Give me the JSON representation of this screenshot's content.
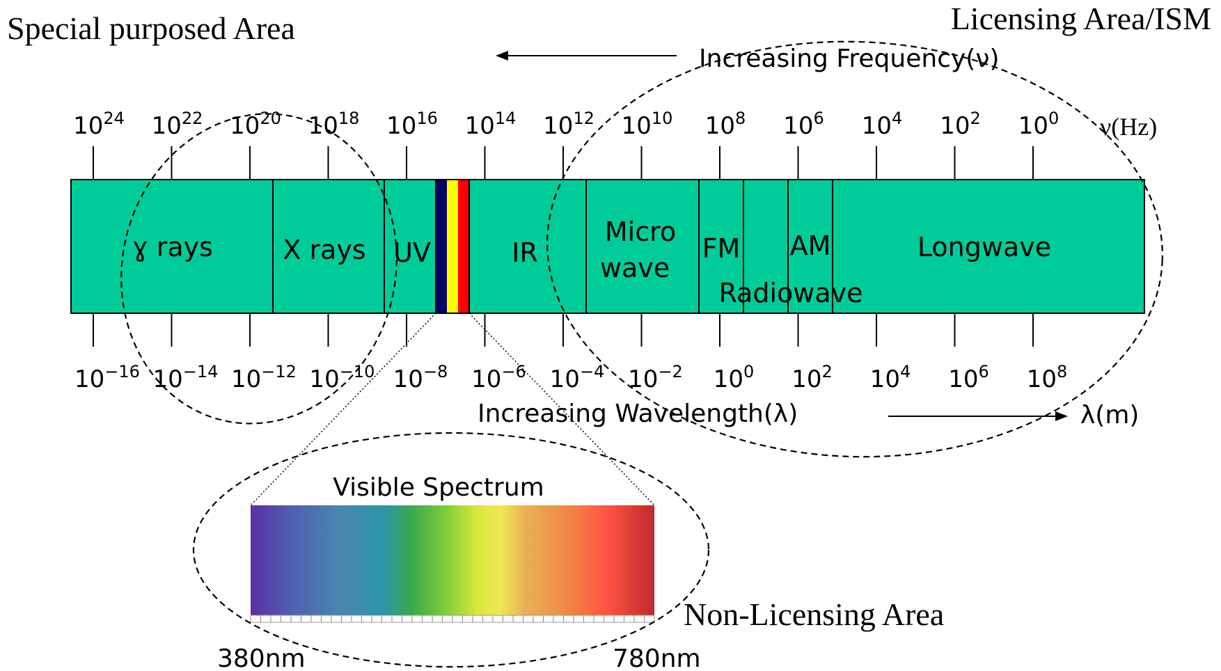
{
  "areas": {
    "special": "Special purposed Area",
    "licensing": "Licensing Area/ISM",
    "non_licensing": "Non-Licensing Area"
  },
  "frequency_axis": {
    "caption": "Increasing Frequency(ν)",
    "unit": "ν(Hz)",
    "ticks": [
      {
        "base": "10",
        "exp": "24"
      },
      {
        "base": "10",
        "exp": "22"
      },
      {
        "base": "10",
        "exp": "20"
      },
      {
        "base": "10",
        "exp": "18"
      },
      {
        "base": "10",
        "exp": "16"
      },
      {
        "base": "10",
        "exp": "14"
      },
      {
        "base": "10",
        "exp": "12"
      },
      {
        "base": "10",
        "exp": "10"
      },
      {
        "base": "10",
        "exp": "8"
      },
      {
        "base": "10",
        "exp": "6"
      },
      {
        "base": "10",
        "exp": "4"
      },
      {
        "base": "10",
        "exp": "2"
      },
      {
        "base": "10",
        "exp": "0"
      }
    ]
  },
  "wavelength_axis": {
    "caption": "Increasing Wavelength(λ)",
    "unit": "λ(m)",
    "ticks": [
      {
        "base": "10",
        "exp": "−16"
      },
      {
        "base": "10",
        "exp": "−14"
      },
      {
        "base": "10",
        "exp": "−12"
      },
      {
        "base": "10",
        "exp": "−10"
      },
      {
        "base": "10",
        "exp": "−8"
      },
      {
        "base": "10",
        "exp": "−6"
      },
      {
        "base": "10",
        "exp": "−4"
      },
      {
        "base": "10",
        "exp": "−2"
      },
      {
        "base": "10",
        "exp": "0"
      },
      {
        "base": "10",
        "exp": "2"
      },
      {
        "base": "10",
        "exp": "4"
      },
      {
        "base": "10",
        "exp": "6"
      },
      {
        "base": "10",
        "exp": "8"
      }
    ]
  },
  "bands": {
    "gamma": "ɣ rays",
    "xray": "X rays",
    "uv": "UV",
    "ir": "IR",
    "micro_line1": "Micro",
    "micro_line2": "wave",
    "fm": "FM",
    "am": "AM",
    "radiowave": "Radiowave",
    "longwave": "Longwave"
  },
  "visible": {
    "title": "Visible Spectrum",
    "min_label": "380nm",
    "max_label": "780nm"
  },
  "colors": {
    "band_fill": "#00CC99",
    "visible_blue": "#000066",
    "visible_yellow": "#FFFF00",
    "visible_red": "#FF0000"
  }
}
